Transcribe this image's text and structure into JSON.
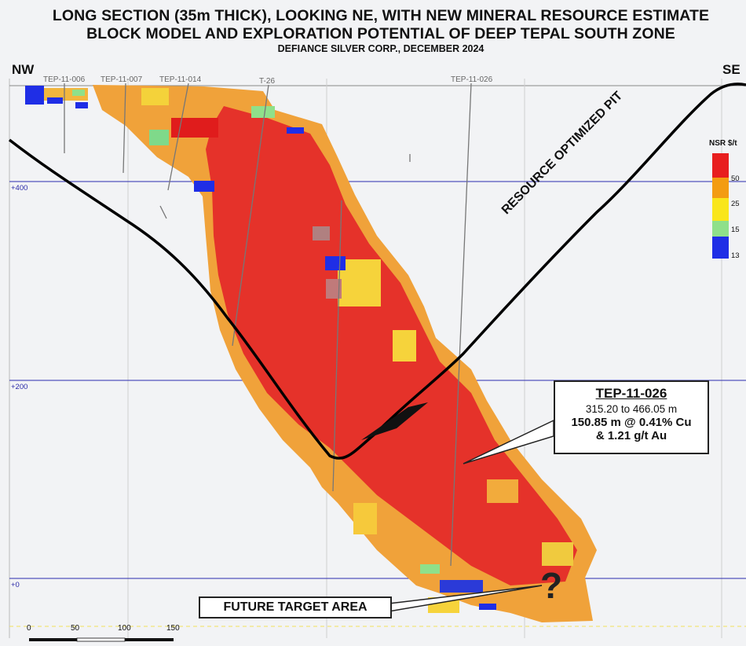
{
  "title_line1": "LONG SECTION (35m THICK), LOOKING NE, WITH NEW MINERAL RESOURCE ESTIMATE",
  "title_line2": "BLOCK MODEL AND EXPLORATION POTENTIAL OF DEEP TEPAL SOUTH ZONE",
  "subtitle": "DEFIANCE SILVER CORP., DECEMBER 2024",
  "direction_left": "NW",
  "direction_right": "SE",
  "drill_holes": [
    "TEP-11-006",
    "TEP-11-007",
    "TEP-11-014",
    "T-26",
    "TEP-11-026"
  ],
  "elevation_labels": [
    "+400",
    "+200",
    "+0"
  ],
  "pit_label": "RESOURCE OPTIMIZED PIT",
  "legend": {
    "title": "NSR $/t",
    "values": [
      "50",
      "25",
      "15",
      "13"
    ],
    "colors": [
      "#e81e1e",
      "#f39c12",
      "#f9e61b",
      "#8fe08a",
      "#1f2ee6"
    ]
  },
  "callout": {
    "hole": "TEP-11-026",
    "interval": "315.20 to 466.05 m",
    "grade1": "150.85 m @ 0.41% Cu",
    "grade2": "& 1.21 g/t Au"
  },
  "future_target": "FUTURE TARGET AREA",
  "question_mark": "?",
  "scale_labels": [
    "0",
    "50",
    "100",
    "150"
  ]
}
